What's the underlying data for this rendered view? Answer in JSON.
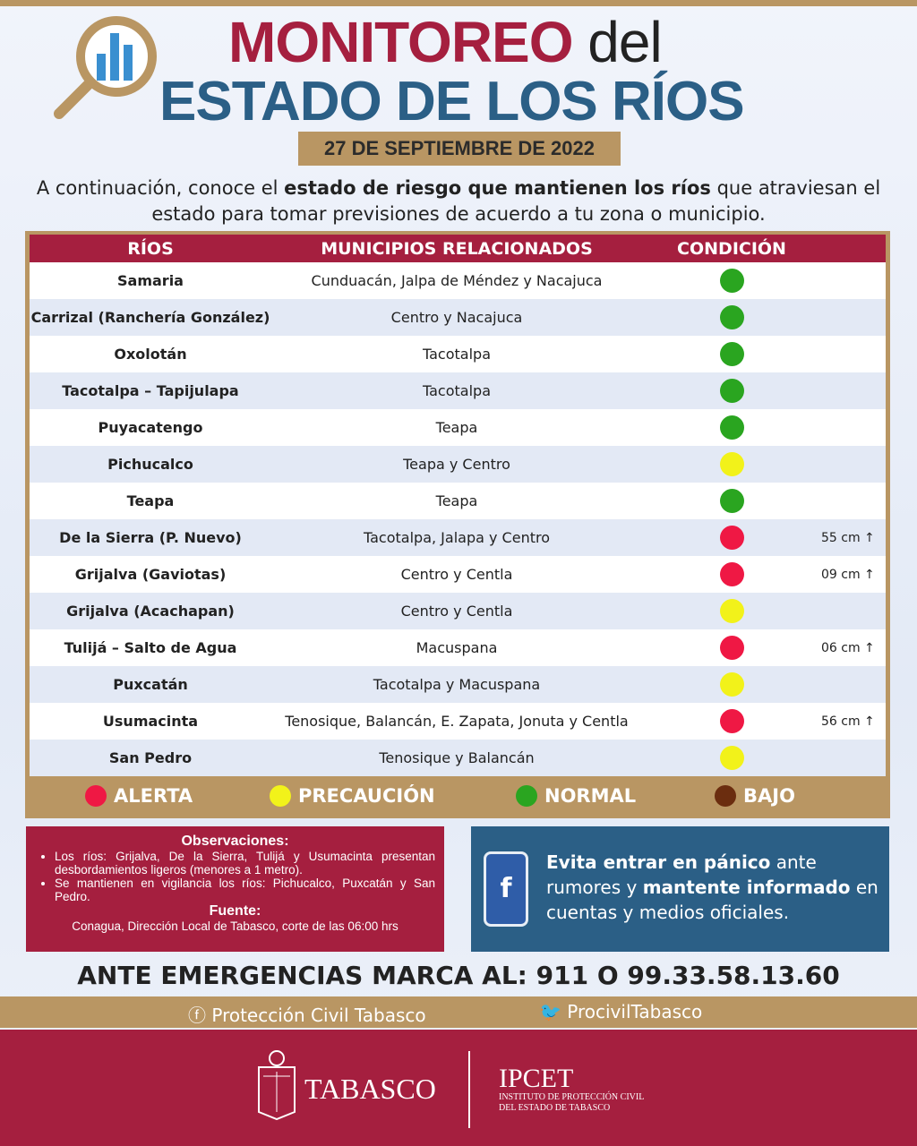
{
  "header": {
    "title_line1": "MONITOREO",
    "title_del": "del",
    "title_line2": "ESTADO DE LOS RÍOS",
    "date": "27 DE SEPTIEMBRE DE 2022",
    "intro_a": "A continuación, conoce el ",
    "intro_b": "estado de riesgo que mantienen los ríos",
    "intro_c": " que atraviesan el estado para tomar previsiones de acuerdo a tu zona o municipio."
  },
  "colors": {
    "maroon": "#a51f3f",
    "blue": "#2b5f86",
    "tan": "#b99663",
    "alerta": "#ef1844",
    "precaucion": "#f2f21a",
    "normal": "#2aa520",
    "bajo": "#6b2d0f"
  },
  "table": {
    "headers": [
      "RÍOS",
      "MUNICIPIOS RELACIONADOS",
      "CONDICIÓN"
    ],
    "rows": [
      {
        "rio": "Samaria",
        "municipios": "Cunduacán, Jalpa de Méndez y Nacajuca",
        "condicion": "normal",
        "nivel": ""
      },
      {
        "rio": "Carrizal (Ranchería González)",
        "municipios": "Centro y Nacajuca",
        "condicion": "normal",
        "nivel": ""
      },
      {
        "rio": "Oxolotán",
        "municipios": "Tacotalpa",
        "condicion": "normal",
        "nivel": ""
      },
      {
        "rio": "Tacotalpa – Tapijulapa",
        "municipios": "Tacotalpa",
        "condicion": "normal",
        "nivel": ""
      },
      {
        "rio": "Puyacatengo",
        "municipios": "Teapa",
        "condicion": "normal",
        "nivel": ""
      },
      {
        "rio": "Pichucalco",
        "municipios": "Teapa y Centro",
        "condicion": "precaucion",
        "nivel": ""
      },
      {
        "rio": "Teapa",
        "municipios": "Teapa",
        "condicion": "normal",
        "nivel": ""
      },
      {
        "rio": "De la Sierra (P. Nuevo)",
        "municipios": "Tacotalpa, Jalapa y Centro",
        "condicion": "alerta",
        "nivel": "55 cm ↑"
      },
      {
        "rio": "Grijalva (Gaviotas)",
        "municipios": "Centro y Centla",
        "condicion": "alerta",
        "nivel": "09 cm ↑"
      },
      {
        "rio": "Grijalva (Acachapan)",
        "municipios": "Centro y Centla",
        "condicion": "precaucion",
        "nivel": ""
      },
      {
        "rio": "Tulijá – Salto de Agua",
        "municipios": "Macuspana",
        "condicion": "alerta",
        "nivel": "06 cm ↑"
      },
      {
        "rio": "Puxcatán",
        "municipios": "Tacotalpa y Macuspana",
        "condicion": "precaucion",
        "nivel": ""
      },
      {
        "rio": "Usumacinta",
        "municipios": "Tenosique, Balancán, E. Zapata, Jonuta y Centla",
        "condicion": "alerta",
        "nivel": "56 cm ↑"
      },
      {
        "rio": "San Pedro",
        "municipios": "Tenosique y Balancán",
        "condicion": "precaucion",
        "nivel": ""
      }
    ]
  },
  "legend": [
    {
      "key": "alerta",
      "label": "ALERTA"
    },
    {
      "key": "precaucion",
      "label": "PRECAUCIÓN"
    },
    {
      "key": "normal",
      "label": "NORMAL"
    },
    {
      "key": "bajo",
      "label": "BAJO"
    }
  ],
  "observaciones": {
    "title": "Observaciones:",
    "items": [
      "Los ríos: Grijalva, De la Sierra, Tulijá y Usumacinta presentan desbordamientos ligeros (menores a 1 metro).",
      "Se mantienen en vigilancia los ríos: Pichucalco, Puxcatán y San Pedro."
    ],
    "fuente_title": "Fuente:",
    "fuente": "Conagua, Dirección Local de Tabasco, corte de las 06:00 hrs"
  },
  "aviso": {
    "a": "Evita entrar en pánico",
    "b": " ante rumores y ",
    "c": "mantente informado",
    "d": " en cuentas y medios oficiales.",
    "icon": "facebook-phone-icon"
  },
  "emergencia": "ANTE EMERGENCIAS MARCA AL: 911 O 99.33.58.13.60",
  "social": {
    "facebook": "Protección Civil Tabasco",
    "twitter": "ProcivilTabasco"
  },
  "footer": {
    "tabasco": "TABASCO",
    "ipcet": "IPCET",
    "ipcet_sub1": "INSTITUTO DE PROTECCIÓN CIVIL",
    "ipcet_sub2": "DEL ESTADO DE TABASCO"
  }
}
